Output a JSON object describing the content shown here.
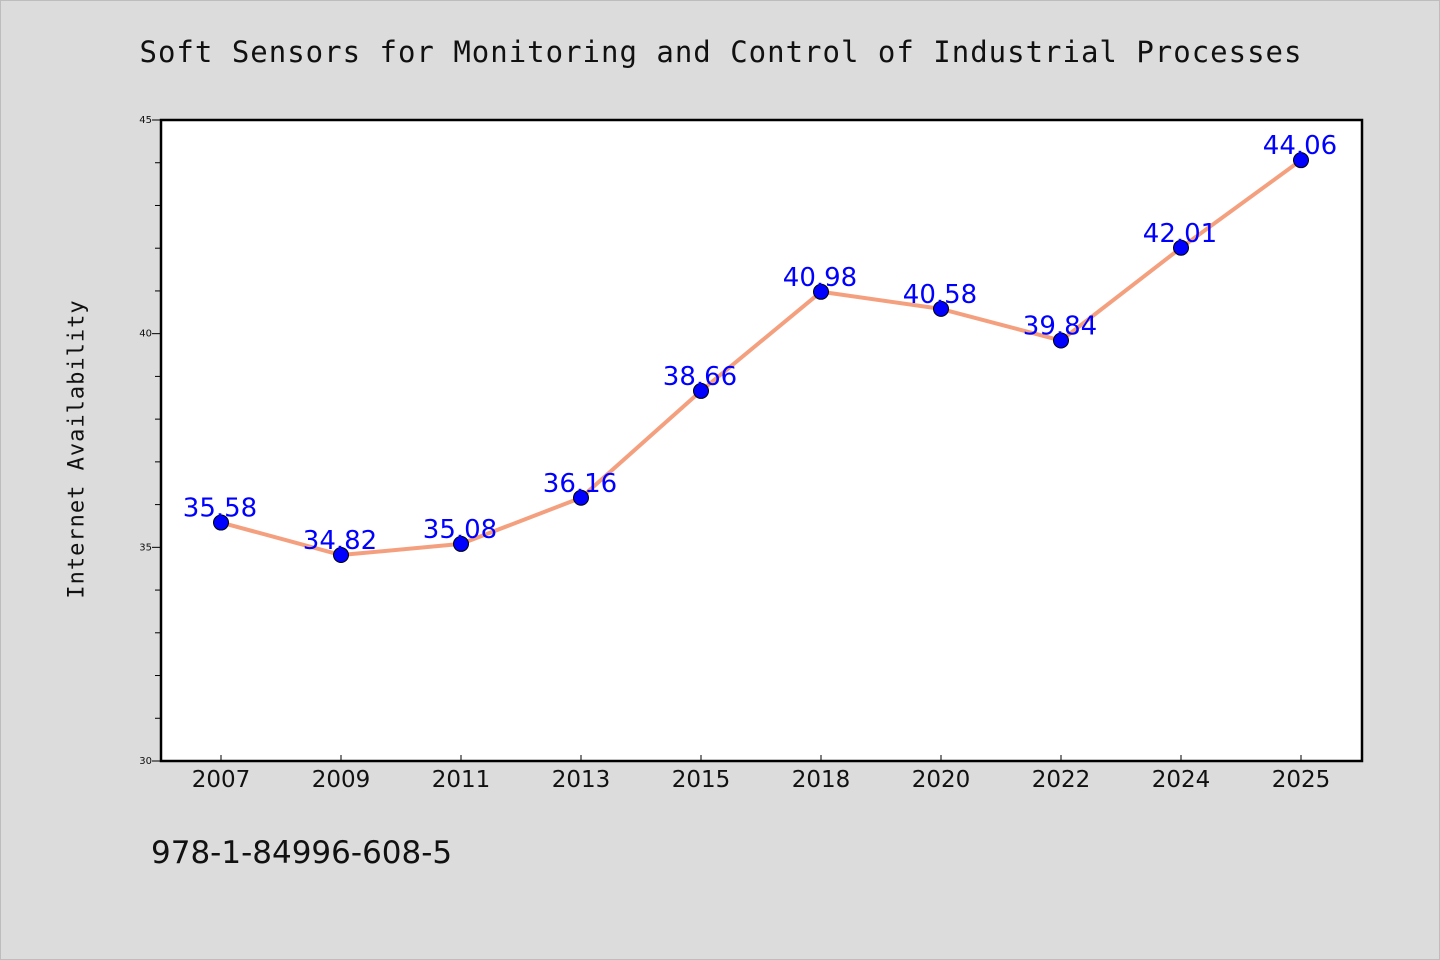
{
  "chart_data": {
    "type": "line",
    "title": "Soft Sensors for Monitoring and Control of Industrial Processes",
    "xlabel": "",
    "ylabel": "Internet Availability",
    "categories": [
      "2007",
      "2009",
      "2011",
      "2013",
      "2015",
      "2018",
      "2020",
      "2022",
      "2024",
      "2025"
    ],
    "series": [
      {
        "values": [
          35.58,
          34.82,
          35.08,
          36.16,
          38.66,
          40.98,
          40.58,
          39.84,
          42.01,
          44.06
        ],
        "line_color": "#f4a07f",
        "marker_color": "#0000ff"
      }
    ],
    "data_labels": [
      "35.58",
      "34.82",
      "35.08",
      "36.16",
      "38.66",
      "40.98",
      "40.58",
      "39.84",
      "42.01",
      "44.06"
    ],
    "ylim": [
      30,
      45
    ],
    "y_ticks": [
      30,
      35,
      40,
      45
    ],
    "y_tick_labels": [
      "30",
      "35",
      "40",
      "45"
    ],
    "grid": false,
    "plot_background": "#ffffff",
    "figure_background": "#dcdcdc"
  },
  "footer": {
    "isbn": "978-1-84996-608-5"
  }
}
